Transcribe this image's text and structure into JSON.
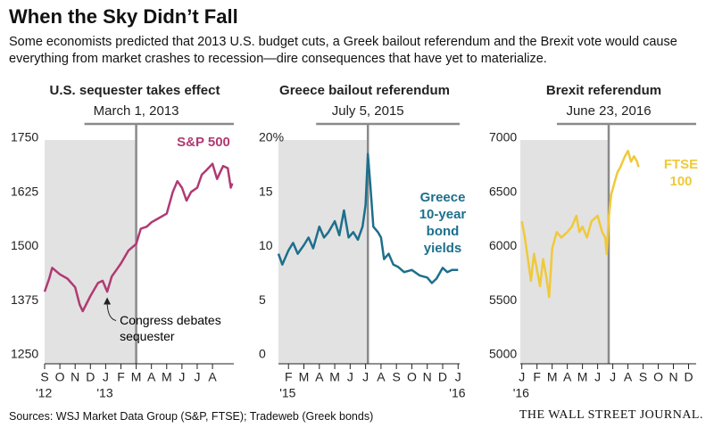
{
  "title": "When the Sky Didn’t Fall",
  "subtitle": "Some economists predicted that 2013 U.S. budget cuts, a Greek bailout referendum and the Brexit vote would cause everything from market crashes to recession—dire consequences that have yet to materialize.",
  "source": "Sources: WSJ Market Data Group (S&P, FTSE); Tradeweb (Greek bonds)",
  "publisher": "THE WALL STREET JOURNAL.",
  "chart_data": [
    {
      "type": "line",
      "title": "U.S. sequester takes effect",
      "event": {
        "label": "March 1, 2013",
        "x": 6
      },
      "annotation": {
        "text": "Congress debates sequester",
        "x": 4.1,
        "y": 1395
      },
      "xlim": [
        0,
        12.4
      ],
      "xticks": [
        {
          "value": 0,
          "label": "S"
        },
        {
          "value": 1,
          "label": "O"
        },
        {
          "value": 2,
          "label": "N"
        },
        {
          "value": 3,
          "label": "D"
        },
        {
          "value": 4,
          "label": "J"
        },
        {
          "value": 5,
          "label": "F"
        },
        {
          "value": 6,
          "label": "M"
        },
        {
          "value": 7,
          "label": "A"
        },
        {
          "value": 8,
          "label": "M"
        },
        {
          "value": 9,
          "label": "J"
        },
        {
          "value": 10,
          "label": "J"
        },
        {
          "value": 11,
          "label": "A"
        }
      ],
      "year_labels": [
        {
          "value": 0,
          "label": "'12"
        },
        {
          "value": 4,
          "label": "'13"
        }
      ],
      "ylim": [
        1250,
        1750
      ],
      "yticks": [
        1250,
        1375,
        1500,
        1625,
        1750
      ],
      "series": [
        {
          "name": "S&P 500",
          "color": "#b03a73",
          "x": [
            0,
            0.3,
            0.5,
            1,
            1.5,
            2,
            2.3,
            2.5,
            3,
            3.5,
            3.8,
            4.1,
            4.4,
            4.7,
            5,
            5.5,
            6,
            6.3,
            6.7,
            7,
            7.5,
            8,
            8.4,
            8.7,
            9,
            9.3,
            9.6,
            10,
            10.3,
            10.6,
            11,
            11.3,
            11.7,
            12,
            12.2,
            12.3
          ],
          "values": [
            1400,
            1430,
            1455,
            1440,
            1430,
            1410,
            1370,
            1355,
            1390,
            1420,
            1425,
            1400,
            1435,
            1450,
            1465,
            1495,
            1510,
            1545,
            1550,
            1560,
            1570,
            1580,
            1630,
            1655,
            1640,
            1610,
            1630,
            1640,
            1670,
            1680,
            1695,
            1660,
            1690,
            1685,
            1640,
            1650
          ]
        }
      ]
    },
    {
      "type": "line",
      "title": "Greece bailout referendum",
      "event": {
        "label": "July 5, 2015",
        "x": 6.15
      },
      "xlim": [
        0.35,
        12.1
      ],
      "xticks": [
        {
          "value": 1,
          "label": "F"
        },
        {
          "value": 2,
          "label": "M"
        },
        {
          "value": 3,
          "label": "A"
        },
        {
          "value": 4,
          "label": "M"
        },
        {
          "value": 5,
          "label": "J"
        },
        {
          "value": 6,
          "label": "J"
        },
        {
          "value": 7,
          "label": "A"
        },
        {
          "value": 8,
          "label": "S"
        },
        {
          "value": 9,
          "label": "O"
        },
        {
          "value": 10,
          "label": "N"
        },
        {
          "value": 11,
          "label": "D"
        },
        {
          "value": 12,
          "label": "J"
        }
      ],
      "year_labels": [
        {
          "value": 1,
          "label": "'15"
        },
        {
          "value": 12,
          "label": "'16"
        }
      ],
      "ylim": [
        0,
        20
      ],
      "yticks": [
        0,
        5,
        10,
        15,
        {
          "value": 20,
          "label": "20%"
        }
      ],
      "series": [
        {
          "name": "Greece 10-year bond yields",
          "color": "#1d6f8c",
          "x": [
            0.35,
            0.6,
            1,
            1.3,
            1.6,
            2,
            2.3,
            2.6,
            3,
            3.3,
            3.6,
            4,
            4.3,
            4.6,
            4.9,
            5.2,
            5.5,
            5.8,
            6,
            6.15,
            6.3,
            6.5,
            6.8,
            7,
            7.2,
            7.5,
            7.8,
            8.1,
            8.5,
            9,
            9.5,
            10,
            10.3,
            10.6,
            11,
            11.3,
            11.6,
            12
          ],
          "values": [
            9.5,
            8.5,
            9.8,
            10.5,
            9.5,
            10.3,
            11,
            10,
            12,
            11,
            11.5,
            12.5,
            11.2,
            13.5,
            11,
            11.5,
            10.8,
            12,
            14,
            18.7,
            16,
            12,
            11.5,
            11,
            9,
            9.5,
            8.5,
            8.3,
            7.8,
            8,
            7.5,
            7.3,
            6.8,
            7.2,
            8.2,
            7.8,
            8,
            8
          ]
        }
      ]
    },
    {
      "type": "line",
      "title": "Brexit referendum",
      "event": {
        "label": "June 23, 2016",
        "x": 5.73
      },
      "xlim": [
        -0.1,
        11.5
      ],
      "xticks": [
        {
          "value": 0,
          "label": "J"
        },
        {
          "value": 1,
          "label": "F"
        },
        {
          "value": 2,
          "label": "M"
        },
        {
          "value": 3,
          "label": "A"
        },
        {
          "value": 4,
          "label": "M"
        },
        {
          "value": 5,
          "label": "J"
        },
        {
          "value": 6,
          "label": "J"
        },
        {
          "value": 7,
          "label": "A"
        },
        {
          "value": 8,
          "label": "S"
        },
        {
          "value": 9,
          "label": "O"
        },
        {
          "value": 10,
          "label": "N"
        },
        {
          "value": 11,
          "label": "D"
        }
      ],
      "year_labels": [
        {
          "value": 0,
          "label": "'16"
        }
      ],
      "ylim": [
        5000,
        7000
      ],
      "yticks": [
        5000,
        5500,
        6000,
        6500,
        7000
      ],
      "series": [
        {
          "name": "FTSE 100",
          "color": "#f0c93a",
          "x": [
            0,
            0.2,
            0.4,
            0.6,
            0.8,
            1,
            1.2,
            1.4,
            1.6,
            1.8,
            2,
            2.3,
            2.6,
            3,
            3.3,
            3.6,
            3.8,
            4,
            4.3,
            4.6,
            5,
            5.3,
            5.5,
            5.6,
            5.75,
            5.9,
            6.1,
            6.3,
            6.5,
            6.8,
            7,
            7.2,
            7.4,
            7.6,
            7.7
          ],
          "values": [
            6250,
            6100,
            5900,
            5700,
            5950,
            5800,
            5650,
            5900,
            5750,
            5550,
            6000,
            6150,
            6100,
            6150,
            6200,
            6300,
            6150,
            6200,
            6100,
            6250,
            6300,
            6150,
            6100,
            5950,
            6300,
            6500,
            6600,
            6700,
            6750,
            6850,
            6900,
            6800,
            6850,
            6800,
            6750
          ]
        }
      ]
    }
  ]
}
